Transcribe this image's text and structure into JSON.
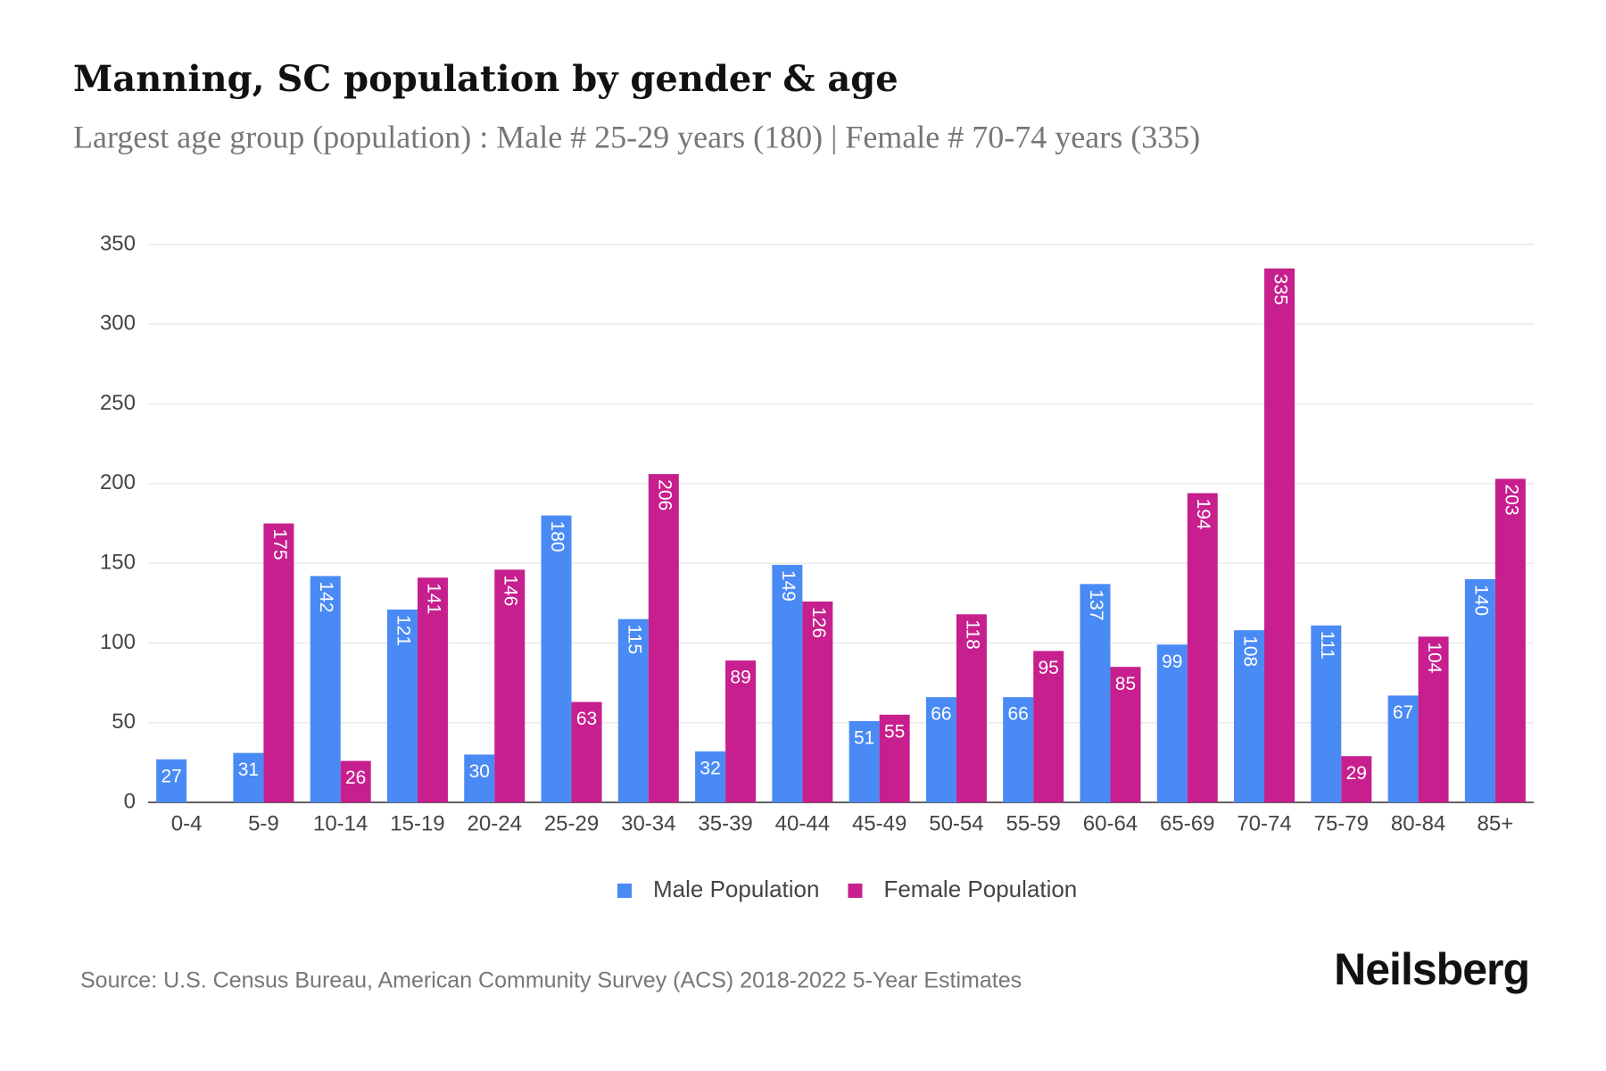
{
  "chart_data": {
    "type": "bar",
    "title": "Manning, SC population by gender & age",
    "subtitle": "Largest age group (population) : Male # 25-29 years (180) | Female # 70-74 years (335)",
    "categories": [
      "0-4",
      "5-9",
      "10-14",
      "15-19",
      "20-24",
      "25-29",
      "30-34",
      "35-39",
      "40-44",
      "45-49",
      "50-54",
      "55-59",
      "60-64",
      "65-69",
      "70-74",
      "75-79",
      "80-84",
      "85+"
    ],
    "series": [
      {
        "name": "Male Population",
        "color": "#4a8af4",
        "values": [
          27,
          31,
          142,
          121,
          30,
          180,
          115,
          32,
          149,
          51,
          66,
          66,
          137,
          99,
          108,
          111,
          67,
          140
        ]
      },
      {
        "name": "Female Population",
        "color": "#c71f8e",
        "values": [
          null,
          175,
          26,
          141,
          146,
          63,
          206,
          89,
          126,
          55,
          118,
          95,
          85,
          194,
          335,
          29,
          104,
          203
        ]
      }
    ],
    "ylim": [
      0,
      350
    ],
    "yticks": [
      0,
      50,
      100,
      150,
      200,
      250,
      300,
      350
    ],
    "grid": true,
    "legend": "bottom",
    "source": "Source: U.S. Census Bureau, American Community Survey (ACS) 2018-2022 5-Year Estimates",
    "brand": "Neilsberg"
  }
}
